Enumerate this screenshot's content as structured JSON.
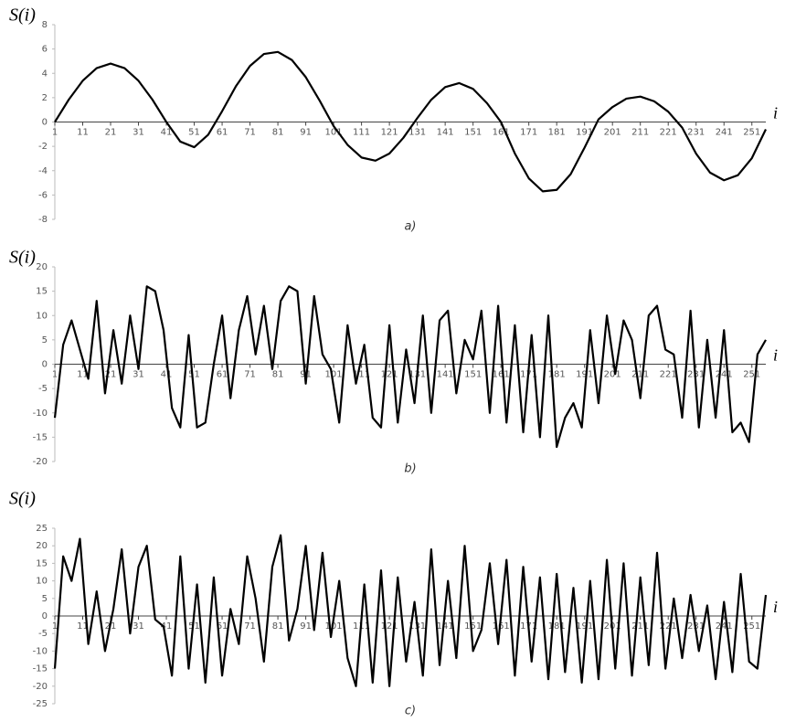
{
  "chart_data": [
    {
      "type": "line",
      "y_label": "S(i)",
      "x_label": "i",
      "caption": "a)",
      "color": "#000000",
      "x": [
        1,
        6,
        11,
        16,
        21,
        26,
        31,
        36,
        41,
        46,
        51,
        56,
        61,
        66,
        71,
        76,
        81,
        86,
        91,
        96,
        101,
        106,
        111,
        116,
        121,
        126,
        131,
        136,
        141,
        146,
        151,
        156,
        161,
        166,
        171,
        176,
        181,
        186,
        191,
        196,
        201,
        206,
        211,
        216,
        221,
        226,
        231,
        236,
        241,
        246,
        251,
        256
      ],
      "values": [
        0,
        1.84,
        3.39,
        4.43,
        4.8,
        4.43,
        3.39,
        1.84,
        0,
        -1.61,
        -2.07,
        -1.05,
        0.89,
        2.96,
        4.61,
        5.59,
        5.76,
        5.1,
        3.69,
        1.75,
        -0.34,
        -1.88,
        -2.92,
        -3.18,
        -2.59,
        -1.3,
        0.32,
        1.83,
        2.87,
        3.2,
        2.72,
        1.55,
        0,
        -2.59,
        -4.63,
        -5.7,
        -5.58,
        -4.29,
        -2.1,
        0.22,
        1.23,
        1.92,
        2.09,
        1.7,
        0.85,
        -0.46,
        -2.6,
        -4.16,
        -4.79,
        -4.37,
        -2.97,
        -0.6
      ],
      "xlim": [
        1,
        256
      ],
      "ylim": [
        -8,
        8
      ],
      "xticks": [
        1,
        11,
        21,
        31,
        41,
        51,
        61,
        71,
        81,
        91,
        101,
        111,
        121,
        131,
        141,
        151,
        161,
        171,
        181,
        191,
        201,
        211,
        221,
        231,
        241,
        251
      ],
      "yticks": [
        -8,
        -6,
        -4,
        -2,
        0,
        2,
        4,
        6,
        8
      ]
    },
    {
      "type": "line",
      "y_label": "S(i)",
      "x_label": "i",
      "caption": "b)",
      "color": "#000000",
      "x": [
        1,
        4,
        7,
        10,
        13,
        16,
        19,
        22,
        25,
        28,
        31,
        34,
        37,
        40,
        43,
        46,
        49,
        52,
        55,
        58,
        61,
        64,
        67,
        70,
        73,
        76,
        79,
        82,
        85,
        88,
        91,
        94,
        97,
        100,
        103,
        106,
        109,
        112,
        115,
        118,
        121,
        124,
        127,
        130,
        133,
        136,
        139,
        142,
        145,
        148,
        151,
        154,
        157,
        160,
        163,
        166,
        169,
        172,
        175,
        178,
        181,
        184,
        187,
        190,
        193,
        196,
        199,
        202,
        205,
        208,
        211,
        214,
        217,
        220,
        223,
        226,
        229,
        232,
        235,
        238,
        241,
        244,
        247,
        250,
        253,
        256
      ],
      "values": [
        -11,
        4,
        9,
        3,
        -3,
        13,
        -6,
        7,
        -4,
        10,
        -1,
        16,
        15,
        7,
        -9,
        -13,
        6,
        -13,
        -12,
        0,
        10,
        -7,
        7,
        14,
        2,
        12,
        -1,
        13,
        16,
        15,
        -4,
        14,
        2,
        -1,
        -12,
        8,
        -4,
        4,
        -11,
        -13,
        8,
        -12,
        3,
        -8,
        10,
        -10,
        9,
        11,
        -6,
        5,
        1,
        11,
        -10,
        12,
        -12,
        8,
        -14,
        6,
        -15,
        10,
        -17,
        -11,
        -8,
        -13,
        7,
        -8,
        10,
        -2,
        9,
        5,
        -7,
        10,
        12,
        3,
        2,
        -11,
        11,
        -13,
        5,
        -11,
        7,
        -14,
        -12,
        -16,
        2,
        5
      ],
      "xlim": [
        1,
        256
      ],
      "ylim": [
        -20,
        20
      ],
      "xticks": [
        1,
        11,
        21,
        31,
        41,
        51,
        61,
        71,
        81,
        91,
        101,
        111,
        121,
        131,
        141,
        151,
        161,
        171,
        181,
        191,
        201,
        211,
        221,
        231,
        241,
        251
      ],
      "yticks": [
        -20,
        -15,
        -10,
        -5,
        0,
        5,
        10,
        15,
        20
      ]
    },
    {
      "type": "line",
      "y_label": "S(i)",
      "x_label": "i",
      "caption": "c)",
      "color": "#000000",
      "x": [
        1,
        4,
        7,
        10,
        13,
        16,
        19,
        22,
        25,
        28,
        31,
        34,
        37,
        40,
        43,
        46,
        49,
        52,
        55,
        58,
        61,
        64,
        67,
        70,
        73,
        76,
        79,
        82,
        85,
        88,
        91,
        94,
        97,
        100,
        103,
        106,
        109,
        112,
        115,
        118,
        121,
        124,
        127,
        130,
        133,
        136,
        139,
        142,
        145,
        148,
        151,
        154,
        157,
        160,
        163,
        166,
        169,
        172,
        175,
        178,
        181,
        184,
        187,
        190,
        193,
        196,
        199,
        202,
        205,
        208,
        211,
        214,
        217,
        220,
        223,
        226,
        229,
        232,
        235,
        238,
        241,
        244,
        247,
        250,
        253,
        256
      ],
      "values": [
        -15,
        17,
        10,
        22,
        -8,
        7,
        -10,
        2,
        19,
        -5,
        14,
        20,
        -1,
        -3,
        -17,
        17,
        -15,
        9,
        -19,
        11,
        -17,
        2,
        -8,
        17,
        5,
        -13,
        14,
        23,
        -7,
        2,
        20,
        -4,
        18,
        -6,
        10,
        -12,
        -20,
        9,
        -19,
        13,
        -20,
        11,
        -13,
        4,
        -17,
        19,
        -14,
        10,
        -12,
        20,
        -10,
        -4,
        15,
        -8,
        16,
        -17,
        14,
        -13,
        11,
        -18,
        12,
        -16,
        8,
        -19,
        10,
        -18,
        16,
        -15,
        15,
        -17,
        11,
        -14,
        18,
        -15,
        5,
        -12,
        6,
        -10,
        3,
        -18,
        4,
        -16,
        12,
        -13,
        -15,
        6
      ],
      "xlim": [
        1,
        256
      ],
      "ylim": [
        -25,
        25
      ],
      "xticks": [
        1,
        11,
        21,
        31,
        41,
        51,
        61,
        71,
        81,
        91,
        101,
        111,
        121,
        131,
        141,
        151,
        161,
        171,
        181,
        191,
        201,
        211,
        221,
        231,
        241,
        251
      ],
      "yticks": [
        -25,
        -20,
        -15,
        -10,
        -5,
        0,
        5,
        10,
        15,
        20,
        25
      ]
    }
  ]
}
